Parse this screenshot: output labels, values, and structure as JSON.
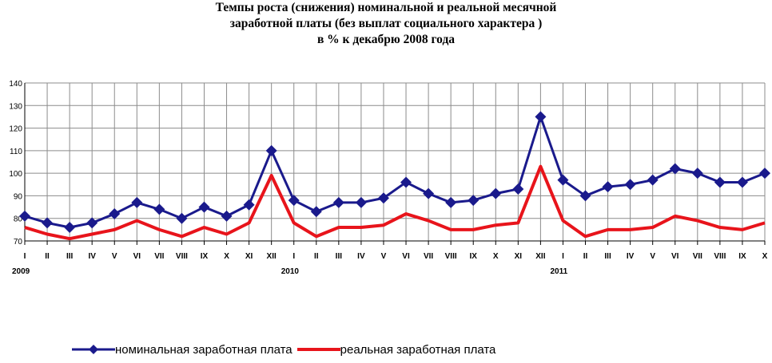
{
  "chart_data": {
    "type": "line",
    "title_lines": [
      "Темпы роста (снижения) номинальной и реальной месячной",
      "заработной платы (без выплат социального характера )",
      "в % к декабрю 2008 года"
    ],
    "categories": [
      "I",
      "II",
      "III",
      "IV",
      "V",
      "VI",
      "VII",
      "VIII",
      "IX",
      "X",
      "XI",
      "XII",
      "I",
      "II",
      "III",
      "IV",
      "V",
      "VI",
      "VII",
      "VIII",
      "IX",
      "X",
      "XI",
      "XII",
      "I",
      "II",
      "III",
      "IV",
      "V",
      "VI",
      "VII",
      "VIII",
      "IX",
      "X"
    ],
    "years": [
      {
        "label": "2009",
        "start_index": 0
      },
      {
        "label": "2010",
        "start_index": 12
      },
      {
        "label": "2011",
        "start_index": 24
      }
    ],
    "ylim": [
      70,
      140
    ],
    "yticks": [
      70,
      80,
      90,
      100,
      110,
      120,
      130,
      140
    ],
    "series": [
      {
        "name": "номинальная заработная плата",
        "color": "#1a1a8c",
        "marker": "diamond",
        "values": [
          81,
          78,
          76,
          78,
          82,
          87,
          84,
          80,
          85,
          81,
          86,
          110,
          88,
          83,
          87,
          87,
          89,
          96,
          91,
          87,
          88,
          91,
          93,
          125,
          97,
          90,
          94,
          95,
          97,
          102,
          100,
          96,
          96,
          100
        ]
      },
      {
        "name": "реальная заработная плата",
        "color": "#e8141b",
        "marker": "none",
        "values": [
          76,
          73,
          71,
          73,
          75,
          79,
          75,
          72,
          76,
          73,
          78,
          99,
          78,
          72,
          76,
          76,
          77,
          82,
          79,
          75,
          75,
          77,
          78,
          103,
          79,
          72,
          75,
          75,
          76,
          81,
          79,
          76,
          75,
          78
        ]
      }
    ],
    "grid": true,
    "legend_position": "bottom"
  }
}
